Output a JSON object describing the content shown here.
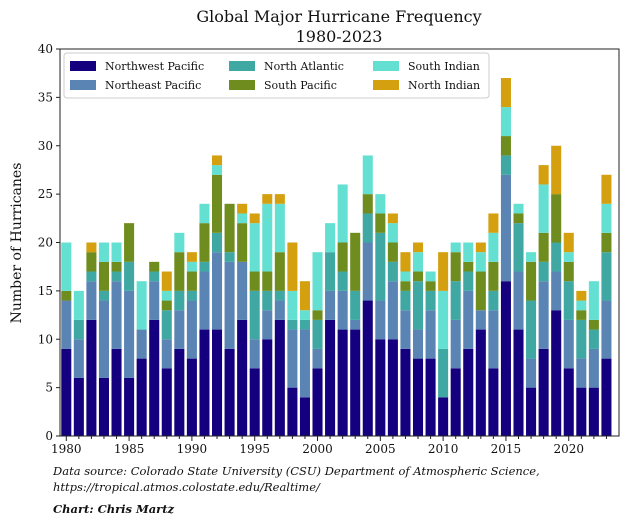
{
  "chart_data": {
    "type": "bar",
    "stacked": true,
    "title": "Global Major Hurricane Frequency",
    "subtitle": "1980-2023",
    "xlabel": "",
    "ylabel": "Number of Hurricanes",
    "ylim": [
      0,
      40
    ],
    "xlim": [
      1979.5,
      2024
    ],
    "yticks": [
      "0",
      "5",
      "10",
      "15",
      "20",
      "25",
      "30",
      "35",
      "40"
    ],
    "xticks": [
      "1980",
      "1985",
      "1990",
      "1995",
      "2000",
      "2005",
      "2010",
      "2015",
      "2020"
    ],
    "legend_position": "top-left",
    "x": [
      1980,
      1981,
      1982,
      1983,
      1984,
      1985,
      1986,
      1987,
      1988,
      1989,
      1990,
      1991,
      1992,
      1993,
      1994,
      1995,
      1996,
      1997,
      1998,
      1999,
      2000,
      2001,
      2002,
      2003,
      2004,
      2005,
      2006,
      2007,
      2008,
      2009,
      2010,
      2011,
      2012,
      2013,
      2014,
      2015,
      2016,
      2017,
      2018,
      2019,
      2020,
      2021,
      2022,
      2023
    ],
    "series": [
      {
        "name": "Northwest Pacific",
        "color": "#14007e",
        "values": [
          9,
          6,
          12,
          6,
          9,
          6,
          8,
          12,
          7,
          9,
          8,
          11,
          11,
          9,
          12,
          7,
          10,
          12,
          5,
          4,
          7,
          12,
          11,
          11,
          14,
          10,
          10,
          9,
          8,
          8,
          4,
          7,
          9,
          11,
          7,
          16,
          11,
          5,
          9,
          13,
          7,
          5,
          5,
          8
        ]
      },
      {
        "name": "Northeast Pacific",
        "color": "#5a84b4",
        "values": [
          5,
          4,
          4,
          8,
          7,
          9,
          3,
          4,
          3,
          4,
          6,
          6,
          8,
          9,
          6,
          3,
          3,
          2,
          6,
          7,
          2,
          3,
          4,
          1,
          6,
          4,
          6,
          4,
          3,
          5,
          0,
          5,
          6,
          2,
          6,
          11,
          6,
          3,
          7,
          4,
          5,
          3,
          4,
          6
        ]
      },
      {
        "name": "North Atlantic",
        "color": "#3fa8a2",
        "values": [
          0,
          2,
          1,
          1,
          1,
          3,
          0,
          1,
          3,
          2,
          1,
          1,
          2,
          1,
          0,
          5,
          2,
          1,
          1,
          1,
          3,
          4,
          2,
          3,
          3,
          7,
          2,
          2,
          5,
          2,
          5,
          4,
          2,
          0,
          2,
          2,
          5,
          6,
          2,
          3,
          4,
          4,
          2,
          5
        ]
      },
      {
        "name": "South Pacific",
        "color": "#6f8c1e",
        "values": [
          1,
          0,
          2,
          3,
          1,
          4,
          0,
          1,
          1,
          4,
          2,
          4,
          6,
          5,
          4,
          2,
          2,
          4,
          0,
          0,
          1,
          0,
          3,
          6,
          2,
          2,
          2,
          1,
          1,
          1,
          0,
          3,
          1,
          4,
          3,
          2,
          1,
          4,
          3,
          5,
          2,
          1,
          1,
          2
        ]
      },
      {
        "name": "South Indian",
        "color": "#64e0d2",
        "values": [
          5,
          3,
          0,
          2,
          2,
          0,
          5,
          0,
          1,
          2,
          1,
          2,
          1,
          0,
          1,
          5,
          7,
          5,
          3,
          1,
          6,
          3,
          6,
          0,
          4,
          2,
          2,
          1,
          2,
          1,
          6,
          1,
          2,
          2,
          3,
          3,
          1,
          1,
          5,
          0,
          1,
          1,
          4,
          3
        ]
      },
      {
        "name": "North Indian",
        "color": "#d4a010",
        "values": [
          0,
          0,
          1,
          0,
          0,
          0,
          0,
          0,
          2,
          0,
          1,
          0,
          1,
          0,
          1,
          1,
          1,
          1,
          5,
          3,
          0,
          0,
          0,
          0,
          0,
          0,
          1,
          2,
          1,
          0,
          4,
          0,
          0,
          1,
          2,
          3,
          0,
          0,
          2,
          5,
          2,
          1,
          0,
          3
        ]
      }
    ]
  },
  "footer": {
    "source_line1": "Data source: Colorado State University (CSU) Department of Atmospheric Science,",
    "source_line2": "https://tropical.atmos.colostate.edu/Realtime/",
    "credit": "Chart: Chris Martz"
  }
}
